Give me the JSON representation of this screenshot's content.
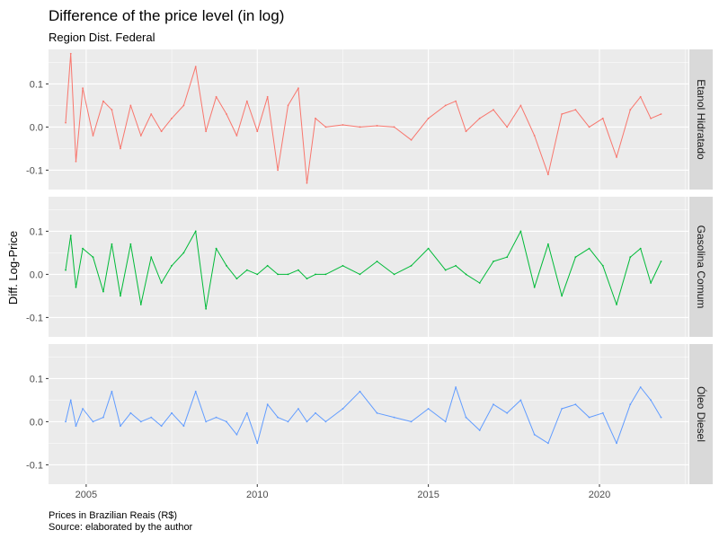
{
  "chart_data": {
    "type": "line",
    "title": "Difference of the price level (in log)",
    "subtitle": "Region Dist. Federal",
    "ylabel": "Diff. Log-Price",
    "xlabel": "",
    "caption_lines": [
      "Prices in Brazilian Reais (R$)",
      "Source: elaborated by the author"
    ],
    "x_ticks": [
      2005,
      2010,
      2015,
      2020
    ],
    "x_tick_labels": [
      "2005",
      "2010",
      "2015",
      "2020"
    ],
    "xlim": [
      2003.9,
      2022.6
    ],
    "y_ticks": [
      -0.1,
      0.0,
      0.1
    ],
    "y_tick_labels": [
      "-0.1",
      "0.0",
      "0.1"
    ],
    "ylim": [
      -0.145,
      0.18
    ],
    "grid": true,
    "facets": "rows",
    "colors": {
      "Etanol Hidratado": "#f8766d",
      "Gasolina Comum": "#00ba38",
      "Óleo Diesel": "#619cff",
      "panel_bg": "#ebebeb",
      "grid": "#ffffff",
      "strip_bg": "#d9d9d9"
    },
    "series": [
      {
        "name": "Etanol Hidratado",
        "x": [
          2004.4,
          2004.55,
          2004.7,
          2004.9,
          2005.2,
          2005.5,
          2005.75,
          2006.0,
          2006.3,
          2006.6,
          2006.9,
          2007.2,
          2007.5,
          2007.85,
          2008.2,
          2008.5,
          2008.8,
          2009.1,
          2009.4,
          2009.7,
          2010.0,
          2010.3,
          2010.6,
          2010.9,
          2011.2,
          2011.45,
          2011.7,
          2012.0,
          2012.5,
          2013.0,
          2013.5,
          2014.0,
          2014.5,
          2015.0,
          2015.5,
          2015.8,
          2016.1,
          2016.5,
          2016.9,
          2017.3,
          2017.7,
          2018.1,
          2018.5,
          2018.9,
          2019.3,
          2019.7,
          2020.1,
          2020.5,
          2020.9,
          2021.2,
          2021.5,
          2021.8
        ],
        "values": [
          0.01,
          0.17,
          -0.08,
          0.09,
          -0.02,
          0.06,
          0.04,
          -0.05,
          0.05,
          -0.02,
          0.03,
          -0.01,
          0.02,
          0.05,
          0.14,
          -0.01,
          0.07,
          0.03,
          -0.02,
          0.06,
          -0.01,
          0.07,
          -0.1,
          0.05,
          0.09,
          -0.13,
          0.02,
          0.0,
          0.005,
          0.0,
          0.003,
          0.0,
          -0.03,
          0.02,
          0.05,
          0.06,
          -0.01,
          0.02,
          0.04,
          0.0,
          0.05,
          -0.02,
          -0.11,
          0.03,
          0.04,
          0.0,
          0.02,
          -0.07,
          0.04,
          0.07,
          0.02,
          0.03
        ]
      },
      {
        "name": "Gasolina Comum",
        "x": [
          2004.4,
          2004.55,
          2004.7,
          2004.9,
          2005.2,
          2005.5,
          2005.75,
          2006.0,
          2006.3,
          2006.6,
          2006.9,
          2007.2,
          2007.5,
          2007.85,
          2008.2,
          2008.5,
          2008.8,
          2009.1,
          2009.4,
          2009.7,
          2010.0,
          2010.3,
          2010.6,
          2010.9,
          2011.2,
          2011.45,
          2011.7,
          2012.0,
          2012.5,
          2013.0,
          2013.5,
          2014.0,
          2014.5,
          2015.0,
          2015.5,
          2015.8,
          2016.1,
          2016.5,
          2016.9,
          2017.3,
          2017.7,
          2018.1,
          2018.5,
          2018.9,
          2019.3,
          2019.7,
          2020.1,
          2020.5,
          2020.9,
          2021.2,
          2021.5,
          2021.8
        ],
        "values": [
          0.01,
          0.09,
          -0.03,
          0.06,
          0.04,
          -0.04,
          0.07,
          -0.05,
          0.07,
          -0.07,
          0.04,
          -0.02,
          0.02,
          0.05,
          0.1,
          -0.08,
          0.06,
          0.02,
          -0.01,
          0.01,
          0.0,
          0.02,
          0.0,
          0.0,
          0.01,
          -0.01,
          0.0,
          0.0,
          0.02,
          0.0,
          0.03,
          0.0,
          0.02,
          0.06,
          0.01,
          0.02,
          0.0,
          -0.02,
          0.03,
          0.04,
          0.1,
          -0.03,
          0.07,
          -0.05,
          0.04,
          0.06,
          0.02,
          -0.07,
          0.04,
          0.06,
          -0.02,
          0.03
        ]
      },
      {
        "name": "Óleo Diesel",
        "x": [
          2004.4,
          2004.55,
          2004.7,
          2004.9,
          2005.2,
          2005.5,
          2005.75,
          2006.0,
          2006.3,
          2006.6,
          2006.9,
          2007.2,
          2007.5,
          2007.85,
          2008.2,
          2008.5,
          2008.8,
          2009.1,
          2009.4,
          2009.7,
          2010.0,
          2010.3,
          2010.6,
          2010.9,
          2011.2,
          2011.45,
          2011.7,
          2012.0,
          2012.5,
          2013.0,
          2013.5,
          2014.0,
          2014.5,
          2015.0,
          2015.5,
          2015.8,
          2016.1,
          2016.5,
          2016.9,
          2017.3,
          2017.7,
          2018.1,
          2018.5,
          2018.9,
          2019.3,
          2019.7,
          2020.1,
          2020.5,
          2020.9,
          2021.2,
          2021.5,
          2021.8
        ],
        "values": [
          0.0,
          0.05,
          -0.01,
          0.03,
          0.0,
          0.01,
          0.07,
          -0.01,
          0.02,
          0.0,
          0.01,
          -0.01,
          0.02,
          -0.01,
          0.07,
          0.0,
          0.01,
          0.0,
          -0.03,
          0.02,
          -0.05,
          0.04,
          0.01,
          0.0,
          0.03,
          0.0,
          0.02,
          0.0,
          0.03,
          0.07,
          0.02,
          0.01,
          0.0,
          0.03,
          0.0,
          0.08,
          0.01,
          -0.02,
          0.04,
          0.02,
          0.05,
          -0.03,
          -0.05,
          0.03,
          0.04,
          0.01,
          0.02,
          -0.05,
          0.04,
          0.08,
          0.05,
          0.01
        ]
      }
    ]
  }
}
